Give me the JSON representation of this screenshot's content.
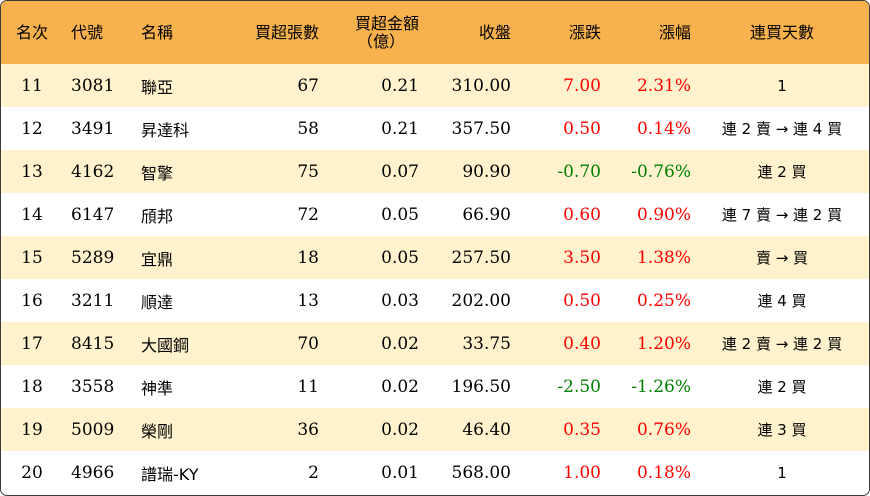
{
  "colors": {
    "header_bg": "#f7b24d",
    "odd_row_bg": "#fff2cc",
    "even_row_bg": "#ffffff",
    "up": "#ff0000",
    "down": "#008000"
  },
  "headers": {
    "rank": "名次",
    "code": "代號",
    "name": "名稱",
    "net_buy_lots": "買超張數",
    "net_buy_amount_line1": "買超金額",
    "net_buy_amount_line2": "（億）",
    "close": "收盤",
    "change": "漲跌",
    "pct": "漲幅",
    "streak": "連買天數"
  },
  "rows": [
    {
      "rank": "11",
      "code": "3081",
      "name": "聯亞",
      "lots": "67",
      "amount": "0.21",
      "close": "310.00",
      "change": "7.00",
      "pct": "2.31%",
      "dir": "up",
      "streak": "1"
    },
    {
      "rank": "12",
      "code": "3491",
      "name": "昇達科",
      "lots": "58",
      "amount": "0.21",
      "close": "357.50",
      "change": "0.50",
      "pct": "0.14%",
      "dir": "up",
      "streak": "連 2 賣 → 連 4 買"
    },
    {
      "rank": "13",
      "code": "4162",
      "name": "智擎",
      "lots": "75",
      "amount": "0.07",
      "close": "90.90",
      "change": "-0.70",
      "pct": "-0.76%",
      "dir": "down",
      "streak": "連 2 買"
    },
    {
      "rank": "14",
      "code": "6147",
      "name": "頎邦",
      "lots": "72",
      "amount": "0.05",
      "close": "66.90",
      "change": "0.60",
      "pct": "0.90%",
      "dir": "up",
      "streak": "連 7 賣 → 連 2 買"
    },
    {
      "rank": "15",
      "code": "5289",
      "name": "宜鼎",
      "lots": "18",
      "amount": "0.05",
      "close": "257.50",
      "change": "3.50",
      "pct": "1.38%",
      "dir": "up",
      "streak": "賣 → 買"
    },
    {
      "rank": "16",
      "code": "3211",
      "name": "順達",
      "lots": "13",
      "amount": "0.03",
      "close": "202.00",
      "change": "0.50",
      "pct": "0.25%",
      "dir": "up",
      "streak": "連 4 買"
    },
    {
      "rank": "17",
      "code": "8415",
      "name": "大國鋼",
      "lots": "70",
      "amount": "0.02",
      "close": "33.75",
      "change": "0.40",
      "pct": "1.20%",
      "dir": "up",
      "streak": "連 2 賣 → 連 2 買"
    },
    {
      "rank": "18",
      "code": "3558",
      "name": "神準",
      "lots": "11",
      "amount": "0.02",
      "close": "196.50",
      "change": "-2.50",
      "pct": "-1.26%",
      "dir": "down",
      "streak": "連 2 買"
    },
    {
      "rank": "19",
      "code": "5009",
      "name": "榮剛",
      "lots": "36",
      "amount": "0.02",
      "close": "46.40",
      "change": "0.35",
      "pct": "0.76%",
      "dir": "up",
      "streak": "連 3 買"
    },
    {
      "rank": "20",
      "code": "4966",
      "name": "譜瑞-KY",
      "lots": "2",
      "amount": "0.01",
      "close": "568.00",
      "change": "1.00",
      "pct": "0.18%",
      "dir": "up",
      "streak": "1"
    }
  ]
}
